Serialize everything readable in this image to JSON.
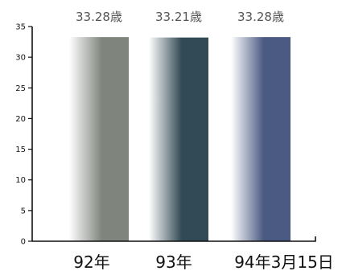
{
  "chart_data": {
    "type": "bar",
    "title": "",
    "xlabel": "",
    "ylabel": "",
    "categories": [
      "92年",
      "93年",
      "94年3月15日"
    ],
    "values": [
      33.28,
      33.21,
      33.28
    ],
    "data_labels": [
      "33.28歳",
      "33.21歳",
      "33.28歳"
    ],
    "ylim": [
      0,
      35
    ],
    "yticks": [
      0,
      5,
      10,
      15,
      20,
      25,
      30,
      35
    ],
    "grid": false,
    "legend": "none",
    "bar_colors": [
      "#7f847d",
      "#324a55",
      "#4a5a82"
    ]
  }
}
